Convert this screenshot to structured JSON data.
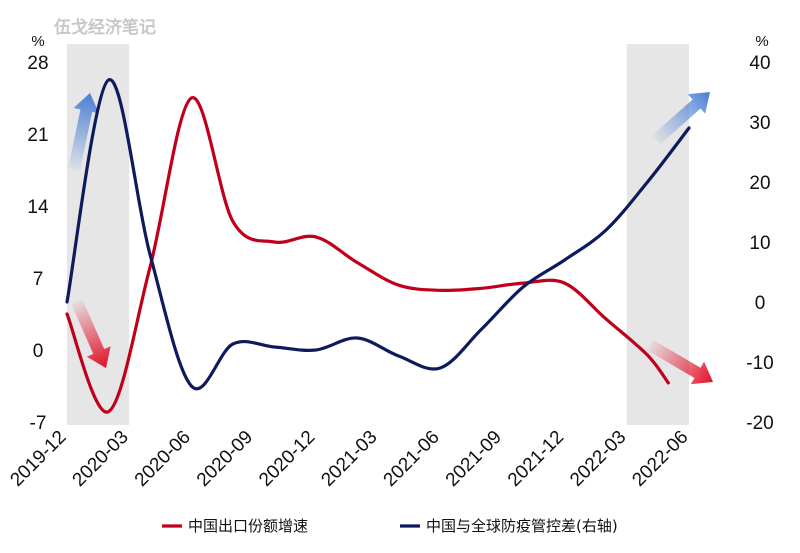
{
  "watermark": "伍戈经济笔记",
  "chart_data": {
    "type": "line",
    "title": "",
    "x": [
      "2019-12",
      "2020-03",
      "2020-06",
      "2020-09",
      "2020-12",
      "2021-03",
      "2021-06",
      "2021-09",
      "2021-12",
      "2022-03",
      "2022-06"
    ],
    "y_left_unit": "%",
    "y_right_unit": "%",
    "y_left_ticks": [
      28,
      21,
      14,
      7,
      0,
      -7
    ],
    "y_right_ticks": [
      40,
      30,
      20,
      10,
      0,
      -10,
      -20
    ],
    "y_left_range": [
      -7,
      28
    ],
    "y_right_range": [
      -20,
      40
    ],
    "series": [
      {
        "name": "中国出口份额增速",
        "axis": "left",
        "color": "#c0001a",
        "points": [
          [
            "2019-12",
            3.5
          ],
          [
            "2020-02",
            -6.0
          ],
          [
            "2020-04",
            8.0
          ],
          [
            "2020-06",
            24.5
          ],
          [
            "2020-08",
            12.5
          ],
          [
            "2020-10",
            10.5
          ],
          [
            "2020-12",
            11.0
          ],
          [
            "2021-02",
            8.5
          ],
          [
            "2021-04",
            6.3
          ],
          [
            "2021-06",
            5.8
          ],
          [
            "2021-08",
            6.0
          ],
          [
            "2021-10",
            6.5
          ],
          [
            "2021-12",
            6.5
          ],
          [
            "2022-02",
            3.0
          ],
          [
            "2022-04",
            -0.5
          ],
          [
            "2022-05",
            -3.2
          ]
        ]
      },
      {
        "name": "中国与全球防疫管控差(右轴)",
        "axis": "right",
        "color": "#0d1a5c",
        "points": [
          [
            "2019-12",
            0
          ],
          [
            "2020-02",
            37
          ],
          [
            "2020-04",
            8
          ],
          [
            "2020-06",
            -14
          ],
          [
            "2020-08",
            -7
          ],
          [
            "2020-10",
            -7.5
          ],
          [
            "2020-12",
            -8
          ],
          [
            "2021-02",
            -6
          ],
          [
            "2021-04",
            -9
          ],
          [
            "2021-06",
            -11
          ],
          [
            "2021-08",
            -4.5
          ],
          [
            "2021-10",
            2.5
          ],
          [
            "2021-12",
            7
          ],
          [
            "2022-02",
            12
          ],
          [
            "2022-04",
            20
          ],
          [
            "2022-06",
            29
          ]
        ]
      }
    ],
    "shaded_periods": [
      [
        "2019-12",
        "2020-03"
      ],
      [
        "2022-03",
        "2022-06"
      ]
    ],
    "arrows": [
      {
        "color": "#4a7fd4",
        "direction": "up"
      },
      {
        "color": "#e0102a",
        "direction": "down"
      },
      {
        "color": "#4a7fd4",
        "direction": "up"
      },
      {
        "color": "#e0102a",
        "direction": "down"
      }
    ],
    "legend_position": "bottom",
    "grid": false
  }
}
